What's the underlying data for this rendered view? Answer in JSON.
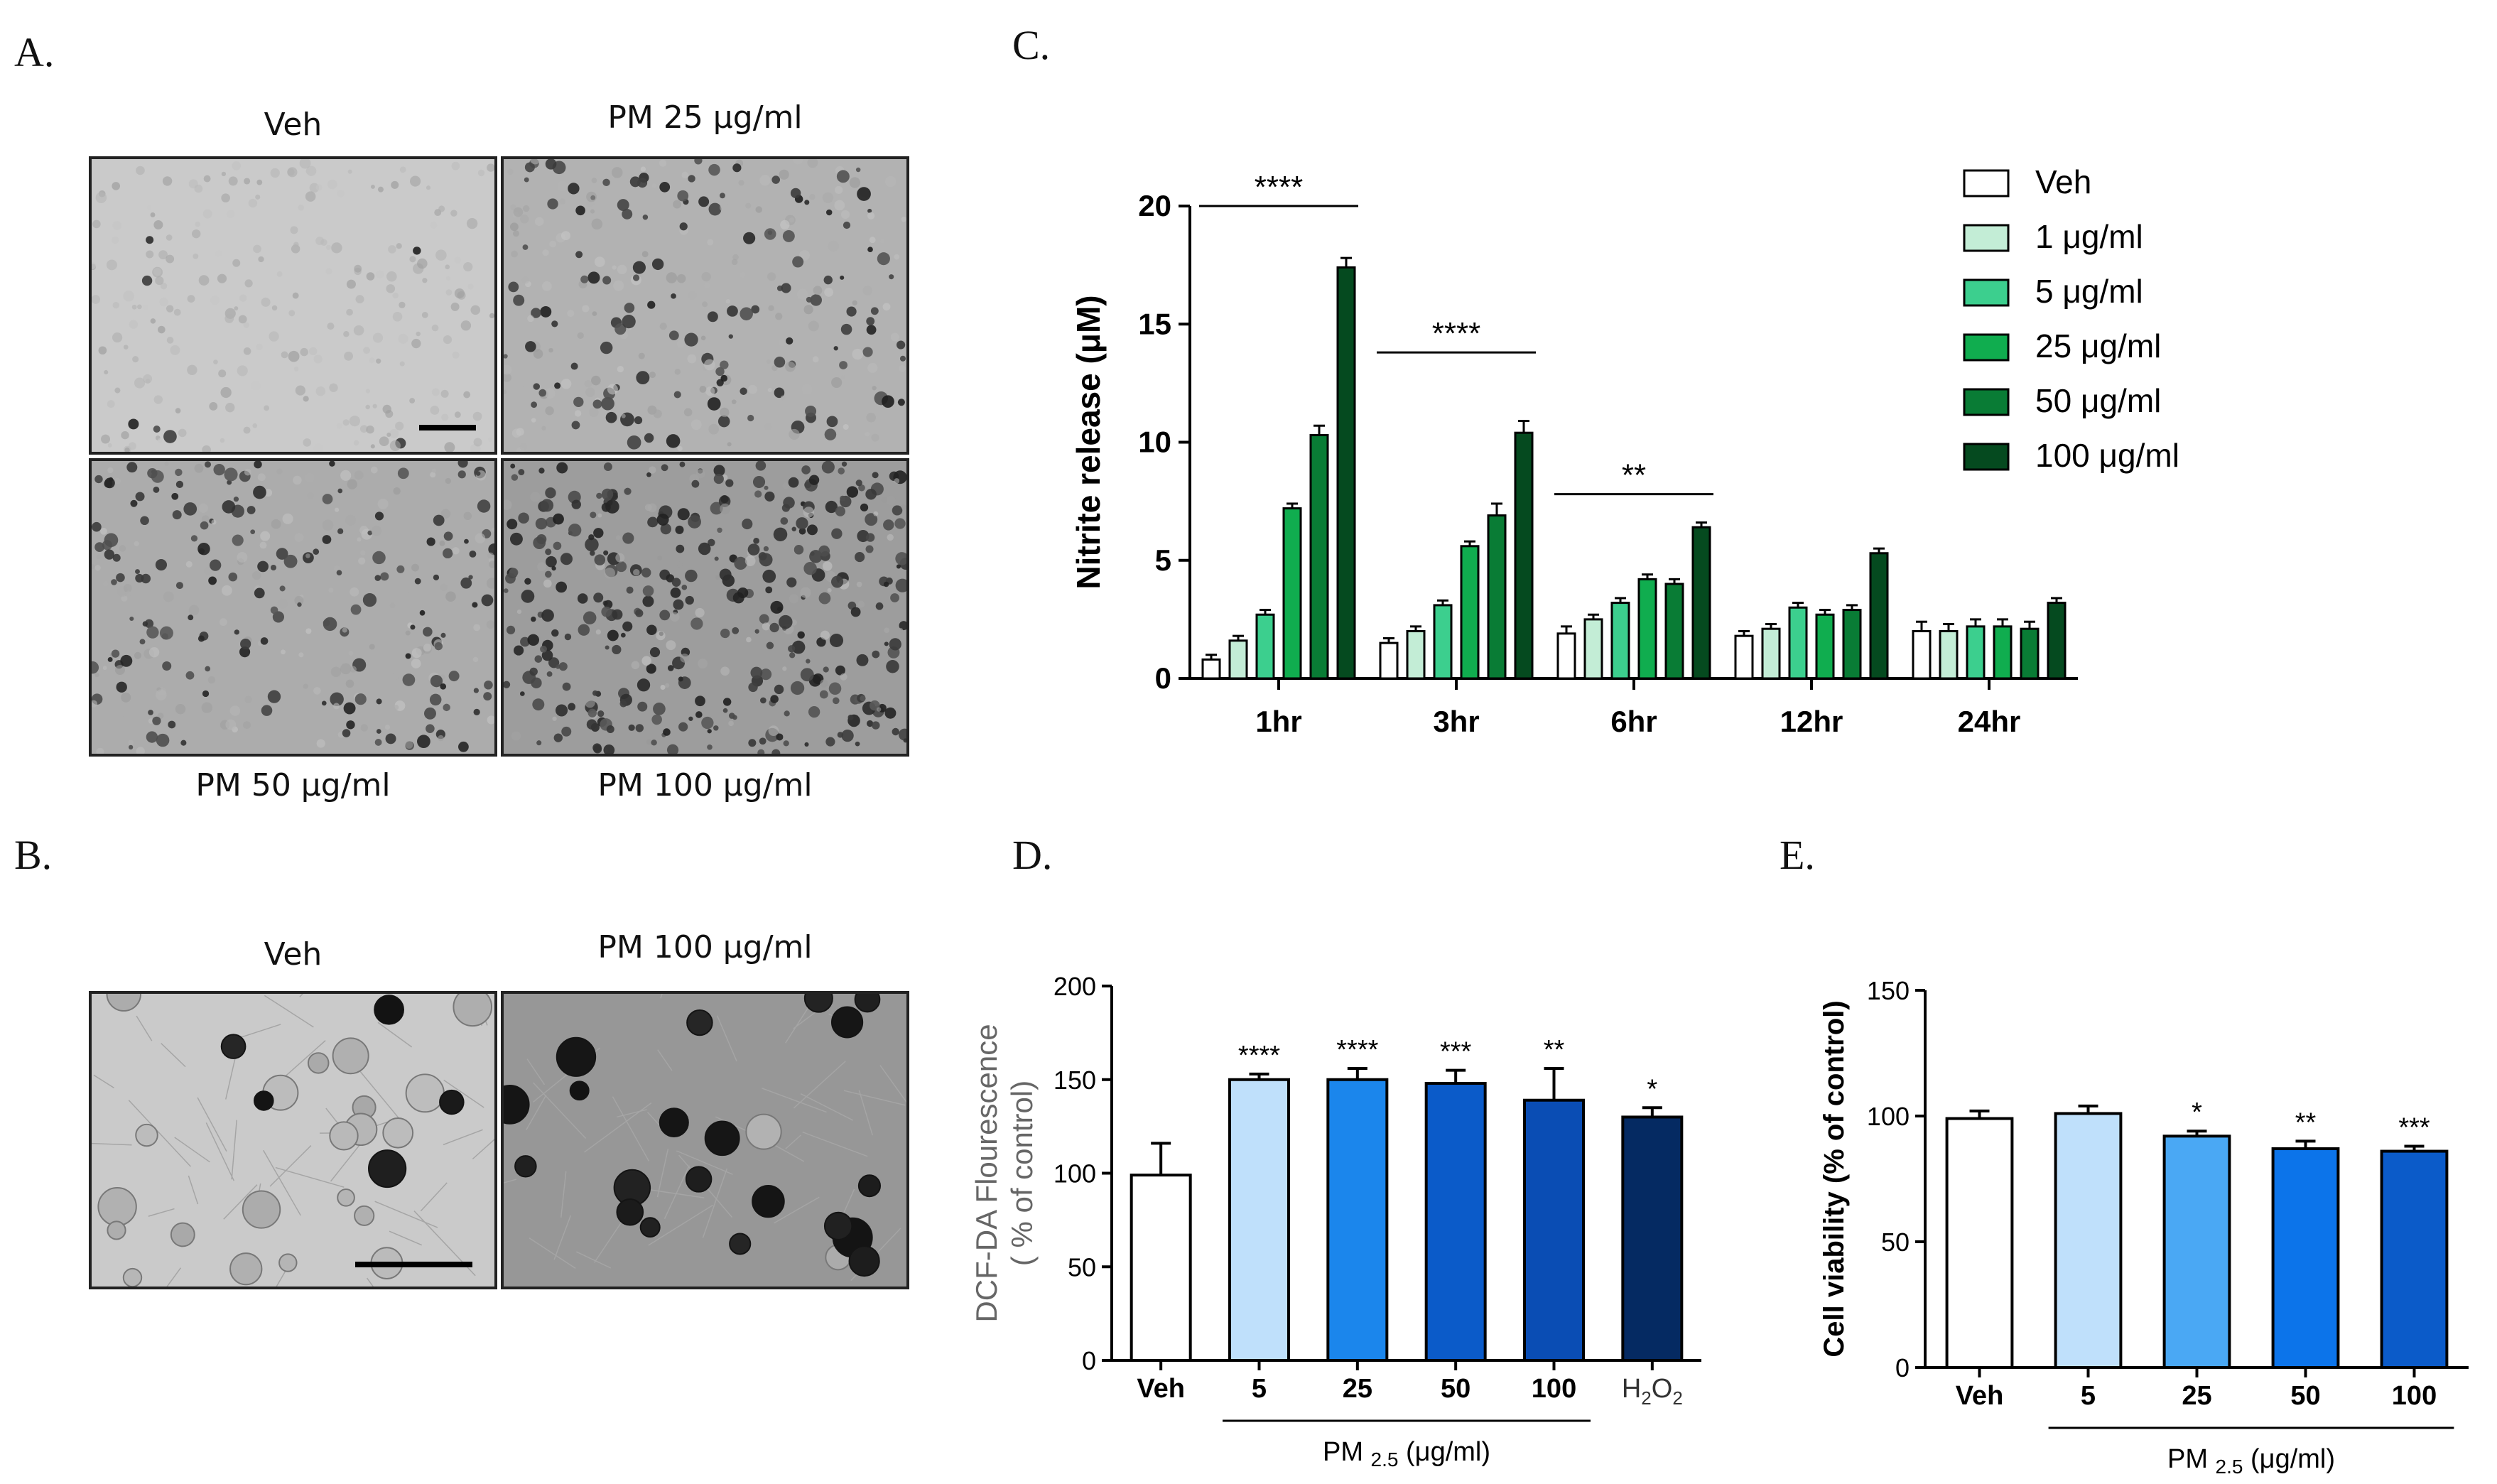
{
  "panel_labels": {
    "a": "A.",
    "b": "B.",
    "c": "C.",
    "d": "D.",
    "e": "E."
  },
  "micrographs": {
    "a": {
      "top_left": "Veh",
      "top_right": "PM 25 μg/ml",
      "bottom_left": "PM 50 μg/ml",
      "bottom_right": "PM 100 μg/ml"
    },
    "b": {
      "left": "Veh",
      "right": "PM 100 μg/ml"
    }
  },
  "colors": {
    "c": [
      "#ffffff",
      "#c3edd6",
      "#3ccf8e",
      "#10ad4f",
      "#097c35",
      "#054a1f"
    ],
    "d": [
      "#ffffff",
      "#bfe0fb",
      "#1b86ec",
      "#0b5bc9",
      "#0a4db4",
      "#052a62"
    ],
    "e": [
      "#ffffff",
      "#bfe0fb",
      "#4aa8f4",
      "#0c74ea",
      "#0b5bc9",
      "#0a3f8f"
    ]
  },
  "chart_data": [
    {
      "id": "C",
      "type": "bar",
      "title": "",
      "xlabel": "",
      "ylabel": "Nitrite release (μM)",
      "ylim": [
        0,
        20
      ],
      "yticks": [
        "0",
        "5",
        "10",
        "15",
        "20"
      ],
      "categories": [
        "1hr",
        "3hr",
        "6hr",
        "12hr",
        "24hr"
      ],
      "series": [
        {
          "name": "Veh",
          "values": [
            0.8,
            1.5,
            1.9,
            1.8,
            2.0
          ],
          "errors": [
            0.2,
            0.2,
            0.3,
            0.2,
            0.4
          ]
        },
        {
          "name": "1 μg/ml",
          "values": [
            1.6,
            2.0,
            2.5,
            2.1,
            2.0
          ],
          "errors": [
            0.2,
            0.2,
            0.2,
            0.2,
            0.3
          ]
        },
        {
          "name": "5 μg/ml",
          "values": [
            2.7,
            3.1,
            3.2,
            3.0,
            2.2
          ],
          "errors": [
            0.2,
            0.2,
            0.2,
            0.2,
            0.3
          ]
        },
        {
          "name": "25 μg/ml",
          "values": [
            7.2,
            5.6,
            4.2,
            2.7,
            2.2
          ],
          "errors": [
            0.2,
            0.2,
            0.2,
            0.2,
            0.3
          ]
        },
        {
          "name": "50 μg/ml",
          "values": [
            10.3,
            6.9,
            4.0,
            2.9,
            2.1
          ],
          "errors": [
            0.4,
            0.5,
            0.2,
            0.2,
            0.3
          ]
        },
        {
          "name": "100 μg/ml",
          "values": [
            17.4,
            10.4,
            6.4,
            5.3,
            3.2
          ],
          "errors": [
            0.4,
            0.5,
            0.2,
            0.2,
            0.2
          ]
        }
      ],
      "significance": [
        {
          "category": "1hr",
          "label": "****",
          "y": 20
        },
        {
          "category": "3hr",
          "label": "****",
          "y": 13.8
        },
        {
          "category": "6hr",
          "label": "**",
          "y": 7.8
        }
      ],
      "legend": [
        "Veh",
        "1 μg/ml",
        "5 μg/ml",
        "25 μg/ml",
        "50 μg/ml",
        "100 μg/ml"
      ],
      "legend_position": "top-right"
    },
    {
      "id": "D",
      "type": "bar",
      "title": "",
      "ylabel": "DCF-DA Flourescence ( % of control)",
      "xlabel": "PM 2.5 (μg/ml)",
      "ylim": [
        0,
        200
      ],
      "yticks": [
        "0",
        "50",
        "100",
        "150",
        "200"
      ],
      "categories": [
        "Veh",
        "5",
        "25",
        "50",
        "100",
        "H2O2"
      ],
      "values": [
        99,
        150,
        150,
        148,
        139,
        130
      ],
      "errors": [
        17,
        3,
        6,
        7,
        17,
        5
      ],
      "stars": [
        "",
        "****",
        "****",
        "***",
        "**",
        "*"
      ],
      "bracket_categories": [
        "5",
        "100"
      ]
    },
    {
      "id": "E",
      "type": "bar",
      "title": "",
      "ylabel": "Cell viability (% of control)",
      "xlabel": "PM 2.5 (μg/ml)",
      "ylim": [
        0,
        150
      ],
      "yticks": [
        "0",
        "50",
        "100",
        "150"
      ],
      "categories": [
        "Veh",
        "5",
        "25",
        "50",
        "100"
      ],
      "values": [
        99,
        101,
        92,
        87,
        86
      ],
      "errors": [
        3,
        3,
        2,
        3,
        2
      ],
      "stars": [
        "",
        "",
        "*",
        "**",
        "***"
      ],
      "bracket_categories": [
        "5",
        "100"
      ]
    }
  ]
}
